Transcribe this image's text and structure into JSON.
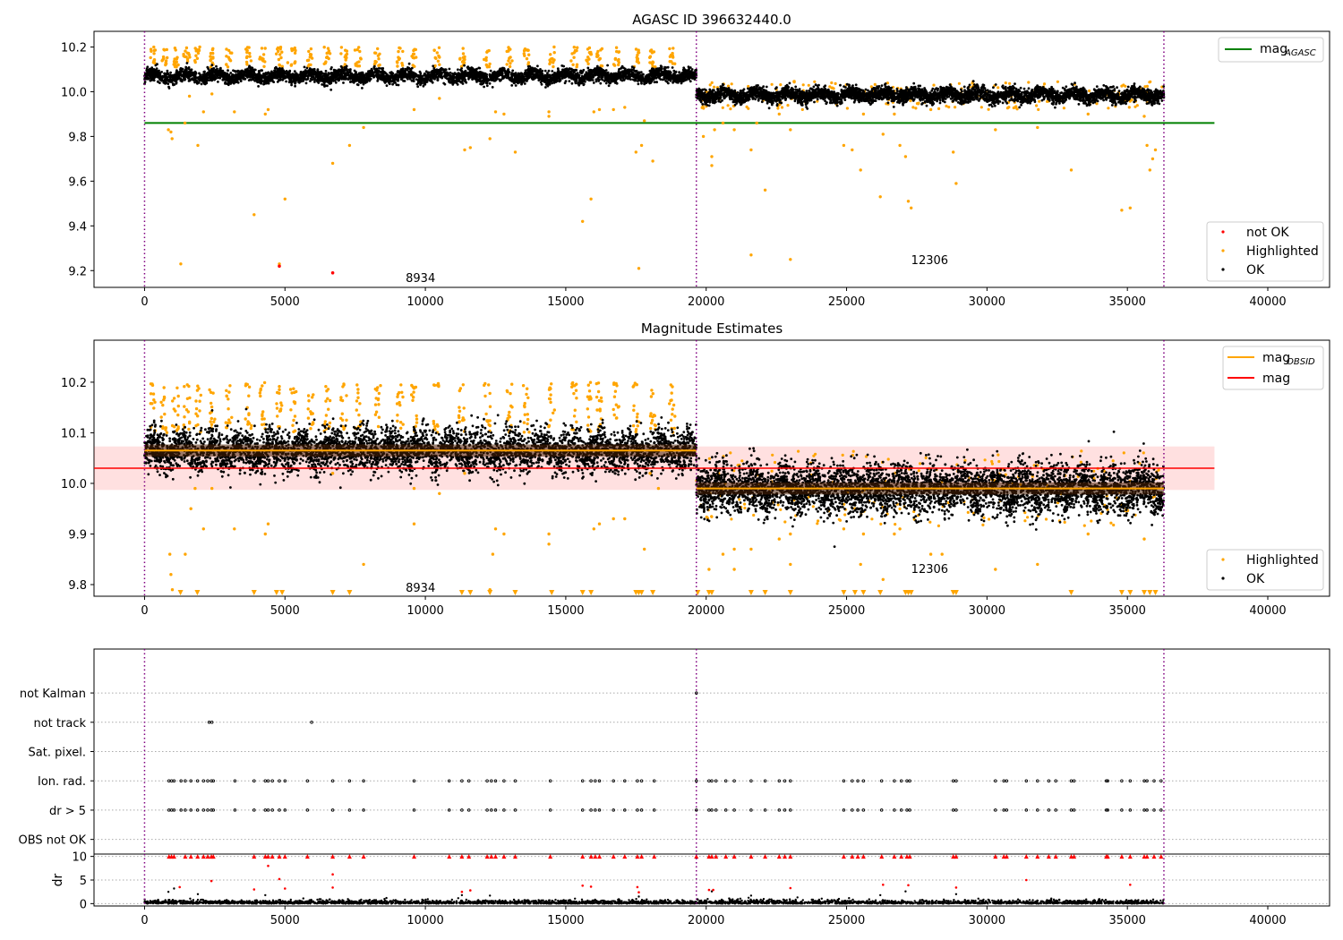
{
  "chart_data": [
    {
      "type": "scatter",
      "title": "AGASC ID 396632440.0",
      "xlim": [
        -1800,
        42200
      ],
      "ylim": [
        9.125,
        10.27
      ],
      "xticks": [
        0,
        5000,
        10000,
        15000,
        20000,
        25000,
        30000,
        35000,
        40000
      ],
      "yticks": [
        9.2,
        9.4,
        9.6,
        9.8,
        10.0,
        10.2
      ],
      "boundaries": [
        0,
        19650,
        36300
      ],
      "obsid_labels": [
        {
          "text": "8934",
          "x": 9300,
          "y": 9.17
        },
        {
          "text": "12306",
          "x": 27300,
          "y": 9.25
        }
      ],
      "mag_agasc": 9.86,
      "mag_agasc_x": [
        0,
        38100
      ],
      "segments": [
        {
          "x": [
            0,
            19650
          ],
          "center": 10.07,
          "spread": 0.02
        },
        {
          "x": [
            19650,
            36300
          ],
          "center": 9.985,
          "spread": 0.022
        }
      ],
      "outliers": [
        [
          1290,
          9.23
        ],
        [
          1440,
          9.86
        ],
        [
          1600,
          9.98
        ],
        [
          850,
          9.83
        ],
        [
          940,
          9.82
        ],
        [
          980,
          9.79
        ],
        [
          1200,
          10.12
        ],
        [
          1900,
          9.76
        ],
        [
          2100,
          9.91
        ],
        [
          2400,
          9.99
        ],
        [
          3200,
          9.91
        ],
        [
          3900,
          9.45
        ],
        [
          4300,
          9.9
        ],
        [
          4400,
          9.92
        ],
        [
          4800,
          9.23
        ],
        [
          4800,
          10.12
        ],
        [
          5000,
          9.52
        ],
        [
          5100,
          10.13
        ],
        [
          6700,
          9.68
        ],
        [
          7300,
          9.76
        ],
        [
          7800,
          9.84
        ],
        [
          9600,
          9.92
        ],
        [
          10500,
          9.97
        ],
        [
          11400,
          9.74
        ],
        [
          11600,
          9.75
        ],
        [
          12300,
          9.79
        ],
        [
          12500,
          9.91
        ],
        [
          12800,
          9.9
        ],
        [
          13200,
          9.73
        ],
        [
          14400,
          9.91
        ],
        [
          14400,
          9.89
        ],
        [
          15600,
          9.42
        ],
        [
          15900,
          9.52
        ],
        [
          16000,
          9.91
        ],
        [
          16200,
          9.92
        ],
        [
          16700,
          9.92
        ],
        [
          17100,
          9.93
        ],
        [
          17500,
          9.73
        ],
        [
          17600,
          9.21
        ],
        [
          17700,
          9.76
        ],
        [
          17800,
          9.87
        ],
        [
          18100,
          9.69
        ],
        [
          19900,
          9.8
        ],
        [
          20200,
          9.71
        ],
        [
          20200,
          9.67
        ],
        [
          20300,
          9.83
        ],
        [
          20600,
          9.86
        ],
        [
          21000,
          9.83
        ],
        [
          21600,
          9.27
        ],
        [
          21600,
          9.74
        ],
        [
          21800,
          9.86
        ],
        [
          22100,
          9.56
        ],
        [
          22600,
          9.9
        ],
        [
          23000,
          9.25
        ],
        [
          23000,
          9.83
        ],
        [
          24900,
          9.76
        ],
        [
          25200,
          9.74
        ],
        [
          25500,
          9.65
        ],
        [
          25600,
          9.9
        ],
        [
          26200,
          9.53
        ],
        [
          26300,
          9.81
        ],
        [
          26700,
          9.9
        ],
        [
          26900,
          9.76
        ],
        [
          27100,
          9.71
        ],
        [
          27200,
          9.51
        ],
        [
          27300,
          9.48
        ],
        [
          28000,
          9.92
        ],
        [
          28800,
          9.73
        ],
        [
          28900,
          9.59
        ],
        [
          30300,
          9.83
        ],
        [
          31800,
          9.84
        ],
        [
          33000,
          9.65
        ],
        [
          33600,
          9.9
        ],
        [
          34800,
          9.47
        ],
        [
          35100,
          9.48
        ],
        [
          35600,
          9.89
        ],
        [
          35700,
          9.76
        ],
        [
          35800,
          9.65
        ],
        [
          35900,
          9.7
        ],
        [
          36000,
          9.74
        ]
      ],
      "spikes": [
        300,
        700,
        1100,
        1500,
        1900,
        2400,
        3000,
        3700,
        4200,
        4800,
        5300,
        5900,
        6500,
        7100,
        7600,
        8300,
        9100,
        9600,
        10400,
        11300,
        12200,
        13000,
        13600,
        14500,
        15300,
        15800,
        16200,
        16800,
        17500,
        18100,
        18800
      ],
      "not_ok": [
        [
          4800,
          9.22
        ],
        [
          6700,
          9.19
        ]
      ],
      "legend_series": [
        {
          "label": "not OK",
          "color": "#ff0000"
        },
        {
          "label": "Highlighted",
          "color": "#ffa500"
        },
        {
          "label": "OK",
          "color": "#000000"
        }
      ],
      "line_legend": {
        "label": "mag",
        "sub": "AGASC",
        "color": "#008000"
      }
    },
    {
      "type": "scatter",
      "title": "Magnitude Estimates",
      "xlim": [
        -1800,
        42200
      ],
      "ylim": [
        9.777,
        10.283
      ],
      "xticks": [
        0,
        5000,
        10000,
        15000,
        20000,
        25000,
        30000,
        35000,
        40000
      ],
      "yticks": [
        9.8,
        9.9,
        10.0,
        10.1,
        10.2
      ],
      "boundaries": [
        0,
        19650,
        36300
      ],
      "obsid_labels": [
        {
          "text": "8934",
          "x": 9300,
          "y": 9.795
        },
        {
          "text": "12306",
          "x": 27300,
          "y": 9.832
        }
      ],
      "mag": 10.03,
      "mag_band": [
        9.987,
        10.073
      ],
      "mag_x": [
        -1800,
        38100
      ],
      "mag_obsid": [
        {
          "x": [
            0,
            19650
          ],
          "value": 10.065
        },
        {
          "x": [
            19650,
            36300
          ],
          "value": 9.99
        }
      ],
      "segments": [
        {
          "x": [
            0,
            19650
          ],
          "center": 10.065,
          "spread": 0.028
        },
        {
          "x": [
            19650,
            36300
          ],
          "center": 9.99,
          "spread": 0.032
        }
      ],
      "outliers": [
        [
          900,
          9.86
        ],
        [
          940,
          9.82
        ],
        [
          990,
          9.79
        ],
        [
          1450,
          9.86
        ],
        [
          1650,
          9.95
        ],
        [
          1800,
          9.99
        ],
        [
          2100,
          9.91
        ],
        [
          2400,
          9.99
        ],
        [
          3200,
          9.91
        ],
        [
          4300,
          9.9
        ],
        [
          4400,
          9.92
        ],
        [
          6700,
          10.02
        ],
        [
          7800,
          9.84
        ],
        [
          9600,
          9.92
        ],
        [
          9600,
          9.99
        ],
        [
          10500,
          9.98
        ],
        [
          11400,
          10.02
        ],
        [
          12300,
          9.79
        ],
        [
          12400,
          9.86
        ],
        [
          12500,
          9.91
        ],
        [
          12800,
          9.9
        ],
        [
          14400,
          9.9
        ],
        [
          14400,
          9.88
        ],
        [
          16000,
          9.91
        ],
        [
          16200,
          9.92
        ],
        [
          16700,
          9.93
        ],
        [
          17100,
          9.93
        ],
        [
          17800,
          9.87
        ],
        [
          18000,
          10.02
        ],
        [
          18300,
          9.99
        ],
        [
          20100,
          9.83
        ],
        [
          20600,
          9.86
        ],
        [
          21000,
          9.83
        ],
        [
          21000,
          9.87
        ],
        [
          21600,
          9.87
        ],
        [
          22600,
          9.89
        ],
        [
          23000,
          9.84
        ],
        [
          23000,
          9.9
        ],
        [
          24900,
          9.91
        ],
        [
          25500,
          9.84
        ],
        [
          25600,
          9.9
        ],
        [
          26300,
          9.81
        ],
        [
          26700,
          9.9
        ],
        [
          26900,
          9.91
        ],
        [
          28000,
          9.86
        ],
        [
          28400,
          9.86
        ],
        [
          30300,
          9.83
        ],
        [
          31800,
          9.84
        ],
        [
          33600,
          9.9
        ],
        [
          35600,
          9.89
        ]
      ],
      "spikes": [
        300,
        700,
        1100,
        1500,
        1900,
        2400,
        3000,
        3700,
        4200,
        4800,
        5300,
        5900,
        6500,
        7100,
        7600,
        8300,
        9100,
        9600,
        10400,
        11300,
        12200,
        13000,
        13600,
        14500,
        15300,
        15800,
        16200,
        16800,
        17500,
        18100,
        18800
      ],
      "triangles": [
        1280,
        1880,
        3900,
        4700,
        4900,
        6700,
        7300,
        11300,
        11600,
        12300,
        13200,
        14500,
        15600,
        15900,
        17500,
        17600,
        17700,
        18100,
        19700,
        20100,
        20200,
        21600,
        22100,
        23000,
        24900,
        25300,
        25600,
        26200,
        27100,
        27200,
        27300,
        28800,
        28900,
        33000,
        34800,
        35100,
        35600,
        35800,
        36000
      ],
      "legend_series": [
        {
          "label": "Highlighted",
          "color": "#ffa500"
        },
        {
          "label": "OK",
          "color": "#000000"
        }
      ],
      "line_legend": [
        {
          "label": "mag",
          "sub": "OBSID",
          "color": "#ffa500"
        },
        {
          "label": "mag",
          "sub": "",
          "color": "#ff0000"
        }
      ]
    },
    {
      "type": "scatter",
      "title": "",
      "xlim": [
        -1800,
        42200
      ],
      "ylim": [
        -0.5,
        6.5
      ],
      "xticks": [],
      "category_labels": [
        "OBS not OK",
        "dr > 5",
        "Ion. rad.",
        "Sat. pixel.",
        "not track",
        "not Kalman"
      ],
      "boundaries": [
        0,
        19650,
        36300
      ],
      "flag_x": [
        870,
        960,
        1050,
        1300,
        1450,
        1650,
        1890,
        2100,
        2250,
        2380,
        2450,
        3220,
        3900,
        4300,
        4400,
        4550,
        4800,
        5000,
        5800,
        6700,
        7300,
        7800,
        9600,
        10850,
        11300,
        11550,
        12200,
        12350,
        12500,
        12800,
        13200,
        14450,
        15600,
        15900,
        16050,
        16200,
        16700,
        17100,
        17550,
        17700,
        18150,
        19650,
        20100,
        20200,
        20350,
        20700,
        21000,
        21600,
        22100,
        22600,
        22800,
        23000,
        24900,
        25200,
        25400,
        25600,
        26250,
        26700,
        26950,
        27150,
        27250,
        28800,
        28900,
        30300,
        30600,
        30700,
        31400,
        31800,
        32200,
        32450,
        33000,
        33100,
        34250,
        34300,
        34800,
        35100,
        35600,
        35700,
        35950,
        36200
      ],
      "not_track_x": [
        2300,
        2400,
        5950
      ],
      "not_kalman_x": [
        19650
      ]
    },
    {
      "type": "scatter",
      "title": "",
      "xlim": [
        -1800,
        42200
      ],
      "ylim": [
        -0.5,
        10.5
      ],
      "xticks": [
        0,
        5000,
        10000,
        15000,
        20000,
        25000,
        30000,
        35000,
        40000
      ],
      "yticks": [
        0,
        5,
        10
      ],
      "ylabel": "dr",
      "boundaries": [
        0,
        19650,
        36300
      ],
      "capped_x": [
        870,
        960,
        1050,
        1450,
        1650,
        1890,
        2100,
        2250,
        2380,
        2450,
        3900,
        4300,
        4400,
        4550,
        4800,
        5000,
        5800,
        6700,
        7300,
        7800,
        9600,
        10850,
        11300,
        11550,
        12200,
        12350,
        12500,
        12800,
        13200,
        14450,
        15600,
        15900,
        16050,
        16200,
        16700,
        17100,
        17550,
        17700,
        18150,
        19650,
        20100,
        20200,
        20350,
        20700,
        21000,
        21600,
        22100,
        22600,
        22800,
        23000,
        24900,
        25200,
        25400,
        25600,
        26250,
        26700,
        26950,
        27150,
        27250,
        28800,
        28900,
        30300,
        30600,
        30700,
        31400,
        31800,
        32200,
        32450,
        33000,
        33100,
        34250,
        34300,
        34800,
        35100,
        35600,
        35700,
        35950,
        36200
      ],
      "red_mid": [
        [
          1250,
          3.5
        ],
        [
          2380,
          4.8
        ],
        [
          3900,
          3.0
        ],
        [
          4400,
          8.0
        ],
        [
          4800,
          5.2
        ],
        [
          5000,
          3.2
        ],
        [
          6700,
          6.2
        ],
        [
          6700,
          3.4
        ],
        [
          11300,
          2.5
        ],
        [
          11600,
          2.8
        ],
        [
          15600,
          3.8
        ],
        [
          15900,
          3.6
        ],
        [
          17550,
          3.5
        ],
        [
          17600,
          2.4
        ],
        [
          20100,
          2.9
        ],
        [
          20250,
          2.9
        ],
        [
          23000,
          3.3
        ],
        [
          26300,
          4.0
        ],
        [
          27200,
          3.9
        ],
        [
          28900,
          3.4
        ],
        [
          31400,
          5.0
        ],
        [
          35100,
          4.0
        ]
      ],
      "black_mid": [
        [
          850,
          2.5
        ],
        [
          1050,
          3.2
        ],
        [
          1900,
          2.0
        ],
        [
          4300,
          1.8
        ],
        [
          11300,
          1.8
        ],
        [
          12300,
          1.7
        ],
        [
          17600,
          1.5
        ],
        [
          20200,
          2.6
        ],
        [
          21600,
          1.7
        ],
        [
          26200,
          1.8
        ],
        [
          27100,
          2.6
        ],
        [
          28900,
          2.0
        ]
      ]
    }
  ]
}
